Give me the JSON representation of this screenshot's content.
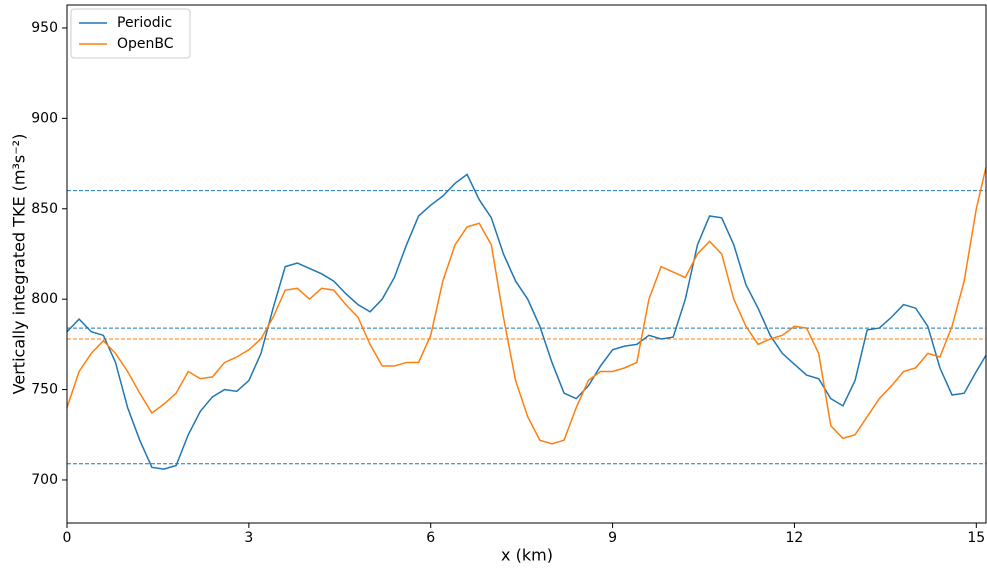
{
  "chart_data": {
    "type": "line",
    "x_label": "x (km)",
    "y_label": "Vertically integrated TKE (m³s⁻²)",
    "x": [
      0,
      0.2,
      0.4,
      0.6,
      0.8,
      1.0,
      1.2,
      1.4,
      1.6,
      1.8,
      2.0,
      2.2,
      2.4,
      2.6,
      2.8,
      3.0,
      3.2,
      3.4,
      3.6,
      3.8,
      4.0,
      4.2,
      4.4,
      4.6,
      4.8,
      5.0,
      5.2,
      5.4,
      5.6,
      5.8,
      6.0,
      6.2,
      6.4,
      6.6,
      6.8,
      7.0,
      7.2,
      7.4,
      7.6,
      7.8,
      8.0,
      8.2,
      8.4,
      8.6,
      8.8,
      9.0,
      9.2,
      9.4,
      9.6,
      9.8,
      10.0,
      10.2,
      10.4,
      10.6,
      10.8,
      11.0,
      11.2,
      11.4,
      11.6,
      11.8,
      12.0,
      12.2,
      12.4,
      12.6,
      12.8,
      13.0,
      13.2,
      13.4,
      13.6,
      13.8,
      14.0,
      14.2,
      14.4,
      14.6,
      14.8,
      15.0,
      15.16
    ],
    "series": [
      {
        "name": "Periodic",
        "color": "#1f77b4",
        "values": [
          782,
          789,
          782,
          780,
          765,
          740,
          722,
          707,
          706,
          708,
          725,
          738,
          746,
          750,
          749,
          755,
          770,
          795,
          818,
          820,
          817,
          814,
          810,
          803,
          797,
          793,
          800,
          812,
          830,
          846,
          852,
          857,
          864,
          869,
          855,
          845,
          825,
          810,
          800,
          785,
          765,
          748,
          745,
          752,
          763,
          772,
          774,
          775,
          780,
          778,
          779,
          800,
          830,
          846,
          845,
          830,
          808,
          795,
          780,
          770,
          764,
          758,
          756,
          745,
          741,
          755,
          783,
          784,
          790,
          797,
          795,
          785,
          762,
          747,
          748,
          760,
          769
        ]
      },
      {
        "name": "OpenBC",
        "color": "#ff7f0e",
        "values": [
          740,
          760,
          770,
          777,
          770,
          760,
          748,
          737,
          742,
          748,
          760,
          756,
          757,
          765,
          768,
          772,
          778,
          790,
          805,
          806,
          800,
          806,
          805,
          797,
          790,
          775,
          763,
          763,
          765,
          765,
          780,
          810,
          830,
          840,
          842,
          830,
          790,
          755,
          735,
          722,
          720,
          722,
          740,
          755,
          760,
          760,
          762,
          765,
          800,
          818,
          815,
          812,
          825,
          832,
          825,
          800,
          785,
          775,
          778,
          780,
          785,
          784,
          770,
          730,
          723,
          725,
          735,
          745,
          752,
          760,
          762,
          770,
          768,
          785,
          810,
          850,
          873
        ]
      }
    ],
    "hlines": [
      {
        "value": 860,
        "color": "#1f77b4"
      },
      {
        "value": 784,
        "color": "#1f77b4"
      },
      {
        "value": 709,
        "color": "#1f77b4"
      },
      {
        "value": 778,
        "color": "#ff7f0e"
      }
    ],
    "xlim": [
      0,
      15.16
    ],
    "xticks": [
      0,
      3,
      6,
      9,
      12,
      15
    ],
    "ylim": [
      676.2,
      962.7
    ],
    "yticks": [
      700,
      750,
      800,
      850,
      900,
      950
    ],
    "legend": "upper left",
    "grid": false
  }
}
